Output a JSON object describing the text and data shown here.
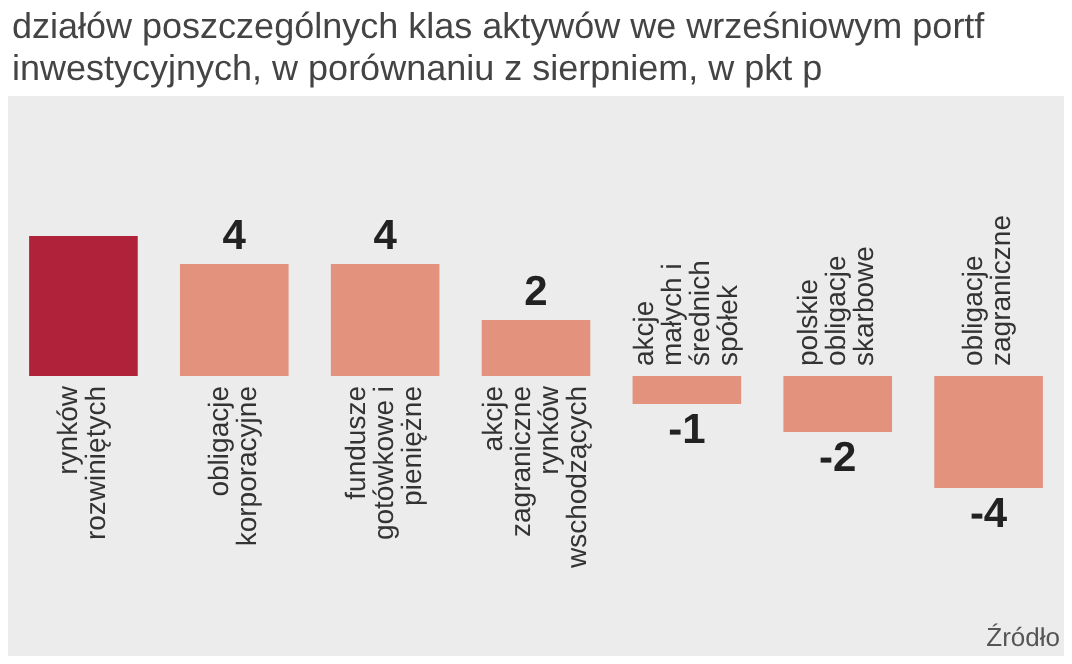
{
  "chart_data": {
    "type": "bar",
    "title": "działów poszczególnych klas aktywów we wrześniowym portf inwestycyjnych, w porównaniu z sierpniem, w pkt p",
    "categories": [
      "rynków rozwiniętych",
      "obligacje korporacyjne",
      "fundusze gotówkowe i pieniężne",
      "akcje zagraniczne rynków wschodzących",
      "akcje małych i średnich spółek",
      "polskie obligacje skarbowe",
      "obligacje zagraniczne"
    ],
    "values": [
      5,
      4,
      4,
      2,
      -1,
      -2,
      -4
    ],
    "value_labels": [
      null,
      "4",
      "4",
      "2",
      "-1",
      "-2",
      "-4"
    ],
    "colors": [
      "#b0213a",
      "#e3927e",
      "#e3927e",
      "#e3927e",
      "#e3927e",
      "#e3927e",
      "#e3927e"
    ],
    "legend": false,
    "tick_labels": "x",
    "annotations": [
      "Źródło"
    ]
  }
}
